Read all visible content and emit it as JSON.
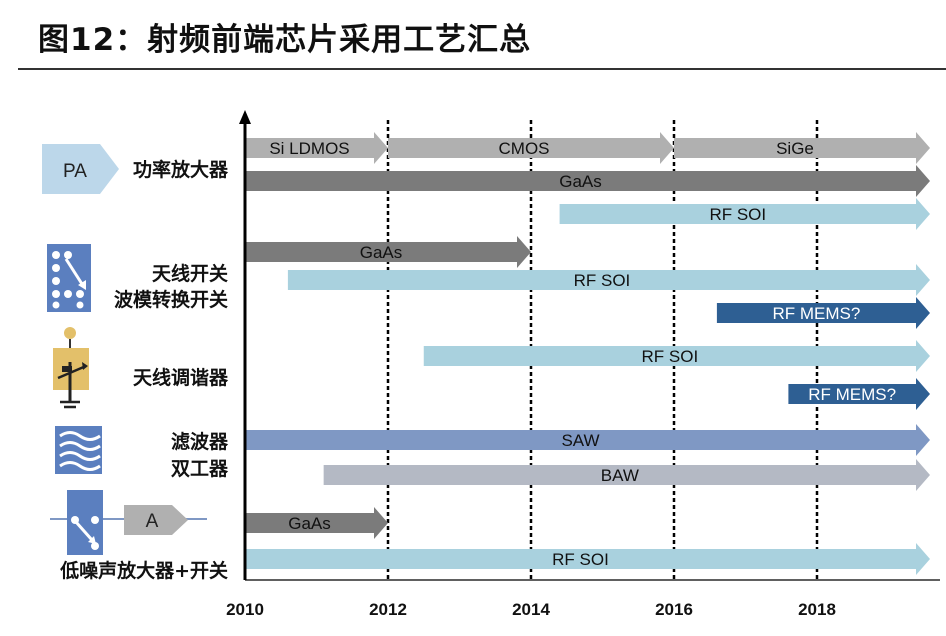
{
  "title": "图12：射频前端芯片采用工艺汇总",
  "chart_data": {
    "type": "timeline",
    "x_axis": {
      "ticks": [
        2010,
        2012,
        2014,
        2016,
        2018
      ],
      "dashed_gridlines": [
        2012,
        2014,
        2016,
        2018
      ]
    },
    "groups": [
      {
        "icon": "pa-icon",
        "icon_text": "PA",
        "labels": [
          "功率放大器"
        ]
      },
      {
        "icon": "antenna-switch-icon",
        "labels": [
          "天线开关",
          "波模转换开关"
        ]
      },
      {
        "icon": "antenna-tuner-icon",
        "labels": [
          "天线调谐器"
        ]
      },
      {
        "icon": "filter-icon",
        "labels": [
          "滤波器",
          "双工器"
        ]
      },
      {
        "icon": "lna-switch-icon",
        "icon_text": "A",
        "labels": [
          "低噪声放大器+开关"
        ]
      }
    ],
    "bars": [
      {
        "label": "Si LDMOS",
        "start": 2010,
        "end": 2012,
        "color": "#b0b0b0",
        "text": "#111111"
      },
      {
        "label": "CMOS",
        "start": 2012,
        "end": 2016,
        "color": "#b0b0b0",
        "text": "#111111"
      },
      {
        "label": "SiGe",
        "start": 2016,
        "end": 2019.5,
        "color": "#b0b0b0",
        "text": "#111111"
      },
      {
        "label": "GaAs",
        "start": 2010,
        "end": 2019.5,
        "color": "#7b7b7b",
        "text": "#111111"
      },
      {
        "label": "RF SOI",
        "start": 2014.4,
        "end": 2019.5,
        "color": "#a9d1de",
        "text": "#111111"
      },
      {
        "label": "GaAs",
        "start": 2010,
        "end": 2014,
        "color": "#7b7b7b",
        "text": "#111111"
      },
      {
        "label": "RF SOI",
        "start": 2010.6,
        "end": 2019.5,
        "color": "#a9d1de",
        "text": "#111111"
      },
      {
        "label": "RF MEMS?",
        "start": 2016.6,
        "end": 2019.5,
        "color": "#2e5f93",
        "text": "#ffffff"
      },
      {
        "label": "RF SOI",
        "start": 2012.5,
        "end": 2019.5,
        "color": "#a9d1de",
        "text": "#111111"
      },
      {
        "label": "RF MEMS?",
        "start": 2017.6,
        "end": 2019.5,
        "color": "#2e5f93",
        "text": "#ffffff"
      },
      {
        "label": "SAW",
        "start": 2010,
        "end": 2019.5,
        "color": "#7f98c4",
        "text": "#111111"
      },
      {
        "label": "BAW",
        "start": 2011.1,
        "end": 2019.5,
        "color": "#b4b9c4",
        "text": "#111111"
      },
      {
        "label": "GaAs",
        "start": 2010,
        "end": 2012,
        "color": "#7b7b7b",
        "text": "#111111"
      },
      {
        "label": "RF SOI",
        "start": 2010,
        "end": 2019.5,
        "color": "#a9d1de",
        "text": "#111111"
      }
    ]
  }
}
